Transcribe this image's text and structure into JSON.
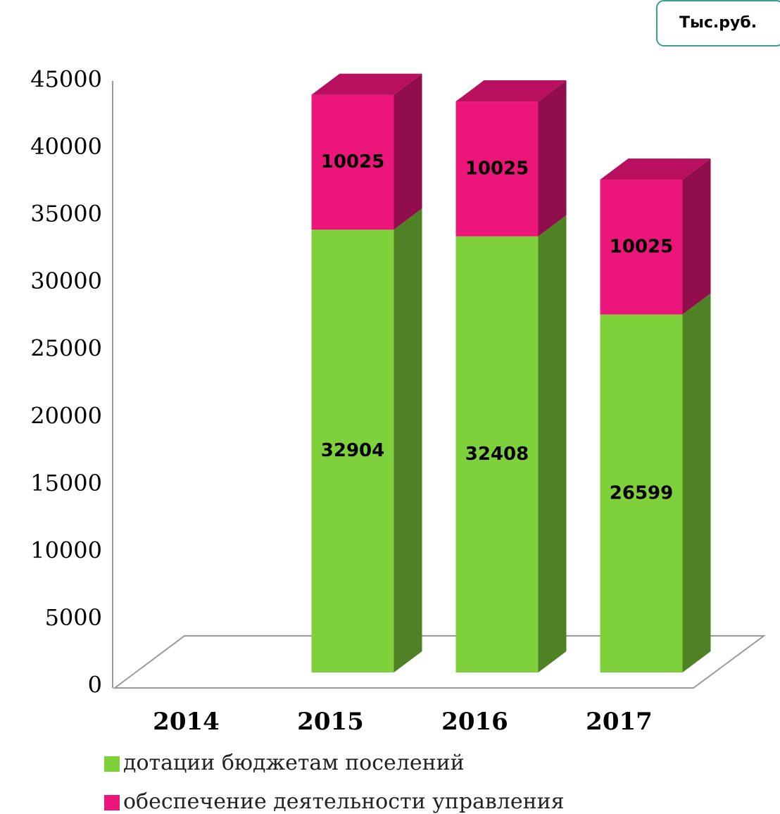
{
  "chart_data": {
    "type": "bar",
    "stacked": true,
    "unit": "Тыс.руб.",
    "categories": [
      "2014",
      "2015",
      "2016",
      "2017"
    ],
    "series": [
      {
        "name": "дотации бюджетам поселений",
        "color": "#7fd13b",
        "values": [
          null,
          32904,
          32408,
          26599
        ]
      },
      {
        "name": "обеспечение деятельности управления",
        "color": "#ec157a",
        "values": [
          null,
          10025,
          10025,
          10025
        ]
      }
    ],
    "ylim": [
      0,
      45000
    ],
    "yticks": [
      0,
      5000,
      10000,
      15000,
      20000,
      25000,
      30000,
      35000,
      40000,
      45000
    ],
    "grid": false,
    "legend": "bottom"
  }
}
